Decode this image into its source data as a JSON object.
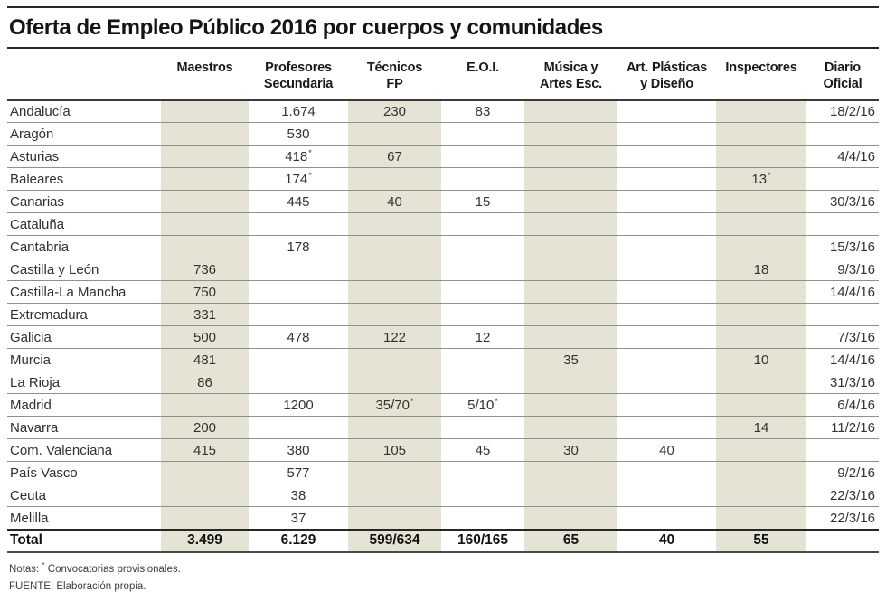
{
  "title": "Oferta de Empleo Público 2016 por cuerpos y comunidades",
  "colors": {
    "band": "#e5e3d4",
    "rule_dark": "#262626",
    "row_line": "#8f8f8f",
    "text": "#333333"
  },
  "notes": {
    "prefix": "Notas:",
    "symbol": "*",
    "text": "Convocatorias provisionales.",
    "source": "FUENTE: Elaboración propia."
  },
  "chart_data": {
    "type": "table",
    "title": "Oferta de Empleo Público 2016 por cuerpos y comunidades",
    "footnote_marker_meaning": "Convocatorias provisionales",
    "columns": [
      {
        "id": "region",
        "label_lines": [],
        "align": "left",
        "shaded": false
      },
      {
        "id": "maestros",
        "label_lines": [
          "Maestros"
        ],
        "align": "center",
        "shaded": true
      },
      {
        "id": "profesores-secundaria",
        "label_lines": [
          "Profesores",
          "Secundaria"
        ],
        "align": "center",
        "shaded": false
      },
      {
        "id": "tecnicos-fp",
        "label_lines": [
          "Técnicos",
          "FP"
        ],
        "align": "center",
        "shaded": true
      },
      {
        "id": "eoi",
        "label_lines": [
          "E.O.I."
        ],
        "align": "center",
        "shaded": false
      },
      {
        "id": "musica-artes-esc",
        "label_lines": [
          "Música y",
          "Artes Esc."
        ],
        "align": "center",
        "shaded": true
      },
      {
        "id": "art-plasticas-diseno",
        "label_lines": [
          "Art. Plásticas",
          "y Diseño"
        ],
        "align": "center",
        "shaded": false
      },
      {
        "id": "inspectores",
        "label_lines": [
          "Inspectores"
        ],
        "align": "center",
        "shaded": true
      },
      {
        "id": "diario-oficial",
        "label_lines": [
          "Diario",
          "Oficial"
        ],
        "align": "right",
        "shaded": false
      }
    ],
    "rows": [
      {
        "region": "Andalucía",
        "values": [
          "",
          "1.674",
          "230",
          "83",
          "",
          "",
          "",
          "18/2/16"
        ]
      },
      {
        "region": "Aragón",
        "values": [
          "",
          "530",
          "",
          "",
          "",
          "",
          "",
          ""
        ]
      },
      {
        "region": "Asturias",
        "values": [
          "",
          "418*",
          "67",
          "",
          "",
          "",
          "",
          "4/4/16"
        ]
      },
      {
        "region": "Baleares",
        "values": [
          "",
          "174*",
          "",
          "",
          "",
          "",
          "13*",
          ""
        ]
      },
      {
        "region": "Canarias",
        "values": [
          "",
          "445",
          "40",
          "15",
          "",
          "",
          "",
          "30/3/16"
        ]
      },
      {
        "region": "Cataluña",
        "values": [
          "",
          "",
          "",
          "",
          "",
          "",
          "",
          ""
        ]
      },
      {
        "region": "Cantabria",
        "values": [
          "",
          "178",
          "",
          "",
          "",
          "",
          "",
          "15/3/16"
        ]
      },
      {
        "region": "Castilla y León",
        "values": [
          "736",
          "",
          "",
          "",
          "",
          "",
          "18",
          "9/3/16"
        ]
      },
      {
        "region": "Castilla-La Mancha",
        "values": [
          "750",
          "",
          "",
          "",
          "",
          "",
          "",
          "14/4/16"
        ]
      },
      {
        "region": "Extremadura",
        "values": [
          "331",
          "",
          "",
          "",
          "",
          "",
          "",
          ""
        ]
      },
      {
        "region": "Galicia",
        "values": [
          "500",
          "478",
          "122",
          "12",
          "",
          "",
          "",
          "7/3/16"
        ]
      },
      {
        "region": "Murcia",
        "values": [
          "481",
          "",
          "",
          "",
          "35",
          "",
          "10",
          "14/4/16"
        ]
      },
      {
        "region": "La Rioja",
        "values": [
          "86",
          "",
          "",
          "",
          "",
          "",
          "",
          "31/3/16"
        ]
      },
      {
        "region": "Madrid",
        "values": [
          "",
          "1200",
          "35/70*",
          "5/10*",
          "",
          "",
          "",
          "6/4/16"
        ]
      },
      {
        "region": "Navarra",
        "values": [
          "200",
          "",
          "",
          "",
          "",
          "",
          "14",
          "11/2/16"
        ]
      },
      {
        "region": "Com. Valenciana",
        "values": [
          "415",
          "380",
          "105",
          "45",
          "30",
          "40",
          "",
          ""
        ]
      },
      {
        "region": "País Vasco",
        "values": [
          "",
          "577",
          "",
          "",
          "",
          "",
          "",
          "9/2/16"
        ]
      },
      {
        "region": "Ceuta",
        "values": [
          "",
          "38",
          "",
          "",
          "",
          "",
          "",
          "22/3/16"
        ]
      },
      {
        "region": "Melilla",
        "values": [
          "",
          "37",
          "",
          "",
          "",
          "",
          "",
          "22/3/16"
        ]
      },
      {
        "region": "Total",
        "total": true,
        "values": [
          "3.499",
          "6.129",
          "599/634",
          "160/165",
          "65",
          "40",
          "55",
          ""
        ]
      }
    ]
  }
}
